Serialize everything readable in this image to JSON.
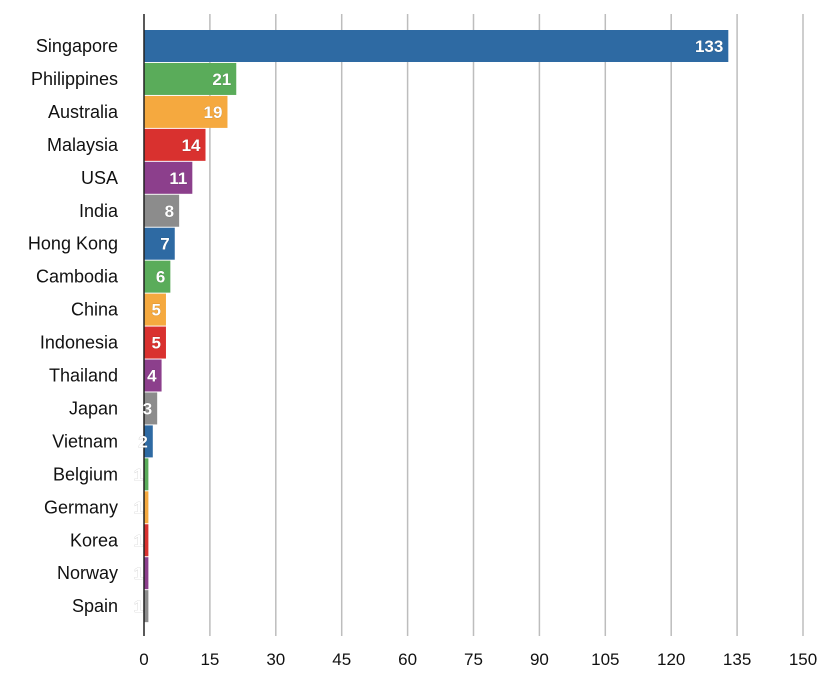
{
  "chart_data": {
    "type": "bar",
    "orientation": "horizontal",
    "categories": [
      "Singapore",
      "Philippines",
      "Australia",
      "Malaysia",
      "USA",
      "India",
      "Hong Kong",
      "Cambodia",
      "China",
      "Indonesia",
      "Thailand",
      "Japan",
      "Vietnam",
      "Belgium",
      "Germany",
      "Korea",
      "Norway",
      "Spain"
    ],
    "values": [
      133,
      21,
      19,
      14,
      11,
      8,
      7,
      6,
      5,
      5,
      4,
      3,
      2,
      1,
      1,
      1,
      1,
      1
    ],
    "colors": [
      "#2e6aa3",
      "#5aac5a",
      "#f5a93f",
      "#d9312f",
      "#8c3f8c",
      "#8c8c8c",
      "#2e6aa3",
      "#5aac5a",
      "#f5a93f",
      "#d9312f",
      "#8c3f8c",
      "#8c8c8c",
      "#2e6aa3",
      "#5aac5a",
      "#f5a93f",
      "#d9312f",
      "#8c3f8c",
      "#8c8c8c"
    ],
    "xticks": [
      0,
      15,
      30,
      45,
      60,
      75,
      90,
      105,
      120,
      135,
      150
    ],
    "xlim": [
      0,
      150
    ],
    "grid": "vertical",
    "data_labels": "inside-end",
    "title": "",
    "xlabel": "",
    "ylabel": ""
  }
}
